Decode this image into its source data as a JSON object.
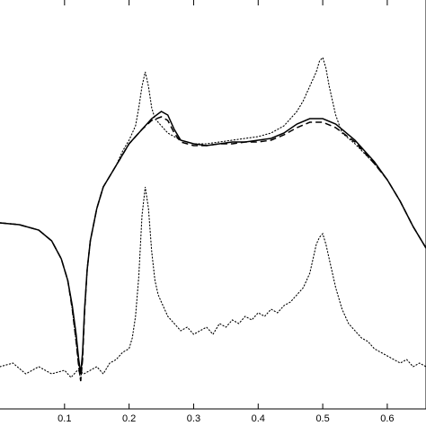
{
  "chart_data": {
    "type": "line",
    "title": "",
    "xlabel": "",
    "ylabel": "",
    "xlim": [
      0,
      0.66
    ],
    "ylim": [
      0,
      1
    ],
    "grid": false,
    "xticks": [
      0.1,
      0.2,
      0.3,
      0.4,
      0.5,
      0.6
    ],
    "xtick_labels": [
      "0.1",
      "0.2",
      "0.3",
      "0.4",
      "0.5",
      "0.6"
    ],
    "series": [
      {
        "style": "solid",
        "x": [
          0,
          0.03,
          0.06,
          0.08,
          0.095,
          0.105,
          0.112,
          0.118,
          0.122,
          0.125,
          0.128,
          0.131,
          0.135,
          0.14,
          0.15,
          0.16,
          0.18,
          0.2,
          0.22,
          0.235,
          0.25,
          0.26,
          0.27,
          0.28,
          0.3,
          0.32,
          0.34,
          0.36,
          0.38,
          0.4,
          0.42,
          0.44,
          0.46,
          0.48,
          0.5,
          0.52,
          0.55,
          0.58,
          0.6,
          0.62,
          0.64,
          0.66
        ],
        "y": [
          0.48,
          0.475,
          0.46,
          0.43,
          0.38,
          0.32,
          0.25,
          0.17,
          0.1,
          0.06,
          0.12,
          0.24,
          0.35,
          0.43,
          0.52,
          0.58,
          0.64,
          0.7,
          0.74,
          0.77,
          0.79,
          0.78,
          0.74,
          0.71,
          0.7,
          0.695,
          0.7,
          0.705,
          0.705,
          0.71,
          0.715,
          0.73,
          0.755,
          0.77,
          0.77,
          0.755,
          0.71,
          0.65,
          0.6,
          0.54,
          0.47,
          0.41
        ]
      },
      {
        "style": "dashed",
        "x": [
          0,
          0.03,
          0.06,
          0.08,
          0.095,
          0.105,
          0.112,
          0.118,
          0.122,
          0.125,
          0.128,
          0.131,
          0.135,
          0.14,
          0.15,
          0.16,
          0.18,
          0.2,
          0.22,
          0.235,
          0.25,
          0.26,
          0.27,
          0.28,
          0.3,
          0.32,
          0.34,
          0.36,
          0.38,
          0.4,
          0.42,
          0.44,
          0.46,
          0.48,
          0.5,
          0.52,
          0.55,
          0.58,
          0.6,
          0.62,
          0.64,
          0.66
        ],
        "y": [
          0.48,
          0.475,
          0.46,
          0.43,
          0.38,
          0.32,
          0.24,
          0.15,
          0.08,
          0.04,
          0.1,
          0.23,
          0.35,
          0.43,
          0.52,
          0.58,
          0.64,
          0.7,
          0.74,
          0.765,
          0.775,
          0.765,
          0.73,
          0.705,
          0.695,
          0.695,
          0.7,
          0.7,
          0.705,
          0.705,
          0.71,
          0.725,
          0.745,
          0.76,
          0.76,
          0.745,
          0.705,
          0.645,
          0.6,
          0.54,
          0.47,
          0.41
        ]
      },
      {
        "style": "dotted",
        "x": [
          0,
          0.03,
          0.06,
          0.08,
          0.095,
          0.105,
          0.112,
          0.118,
          0.122,
          0.125,
          0.128,
          0.131,
          0.135,
          0.14,
          0.15,
          0.16,
          0.18,
          0.19,
          0.2,
          0.21,
          0.215,
          0.22,
          0.225,
          0.23,
          0.235,
          0.24,
          0.25,
          0.26,
          0.27,
          0.28,
          0.3,
          0.32,
          0.34,
          0.36,
          0.38,
          0.4,
          0.42,
          0.44,
          0.45,
          0.46,
          0.47,
          0.48,
          0.49,
          0.495,
          0.5,
          0.505,
          0.51,
          0.52,
          0.53,
          0.55,
          0.58,
          0.6,
          0.62,
          0.64,
          0.66
        ],
        "y": [
          0.48,
          0.475,
          0.46,
          0.43,
          0.38,
          0.32,
          0.24,
          0.15,
          0.08,
          0.04,
          0.1,
          0.23,
          0.35,
          0.43,
          0.52,
          0.58,
          0.64,
          0.68,
          0.71,
          0.75,
          0.8,
          0.86,
          0.9,
          0.86,
          0.8,
          0.77,
          0.75,
          0.73,
          0.72,
          0.71,
          0.7,
          0.7,
          0.705,
          0.71,
          0.715,
          0.72,
          0.73,
          0.75,
          0.77,
          0.79,
          0.82,
          0.86,
          0.9,
          0.93,
          0.94,
          0.91,
          0.86,
          0.78,
          0.73,
          0.7,
          0.645,
          0.6,
          0.54,
          0.47,
          0.41
        ]
      },
      {
        "style": "dotted",
        "x": [
          0,
          0.02,
          0.04,
          0.06,
          0.08,
          0.1,
          0.11,
          0.12,
          0.13,
          0.14,
          0.15,
          0.16,
          0.17,
          0.18,
          0.19,
          0.2,
          0.205,
          0.21,
          0.215,
          0.22,
          0.225,
          0.23,
          0.235,
          0.24,
          0.245,
          0.25,
          0.26,
          0.27,
          0.28,
          0.29,
          0.3,
          0.31,
          0.32,
          0.33,
          0.34,
          0.35,
          0.36,
          0.37,
          0.38,
          0.39,
          0.4,
          0.41,
          0.42,
          0.43,
          0.44,
          0.45,
          0.46,
          0.47,
          0.48,
          0.485,
          0.49,
          0.495,
          0.5,
          0.505,
          0.51,
          0.52,
          0.53,
          0.54,
          0.55,
          0.56,
          0.57,
          0.58,
          0.59,
          0.6,
          0.61,
          0.62,
          0.63,
          0.64,
          0.65,
          0.66
        ],
        "y": [
          0.08,
          0.09,
          0.06,
          0.08,
          0.06,
          0.07,
          0.05,
          0.07,
          0.06,
          0.07,
          0.08,
          0.06,
          0.09,
          0.1,
          0.12,
          0.13,
          0.16,
          0.22,
          0.33,
          0.5,
          0.58,
          0.52,
          0.4,
          0.32,
          0.28,
          0.26,
          0.22,
          0.2,
          0.18,
          0.19,
          0.17,
          0.18,
          0.19,
          0.17,
          0.2,
          0.19,
          0.21,
          0.2,
          0.22,
          0.21,
          0.23,
          0.22,
          0.24,
          0.23,
          0.25,
          0.26,
          0.28,
          0.3,
          0.34,
          0.38,
          0.42,
          0.44,
          0.45,
          0.42,
          0.38,
          0.3,
          0.24,
          0.2,
          0.18,
          0.16,
          0.15,
          0.13,
          0.12,
          0.11,
          0.1,
          0.09,
          0.1,
          0.08,
          0.09,
          0.08
        ]
      }
    ]
  }
}
